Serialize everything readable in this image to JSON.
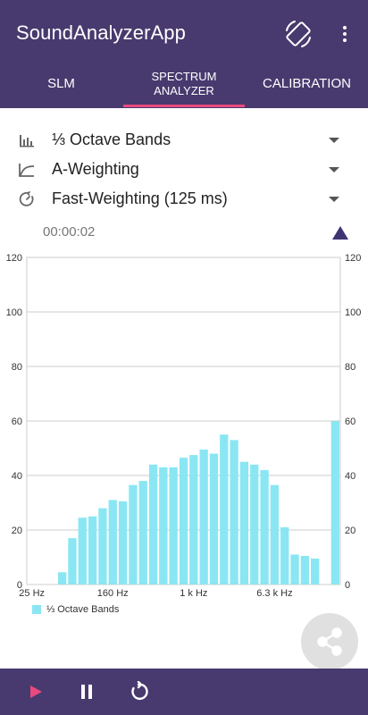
{
  "app": {
    "title": "SoundAnalyzerApp",
    "accent_color": "#e84a7f",
    "primary_color": "#483a6e"
  },
  "tabs": [
    {
      "label": "SLM"
    },
    {
      "label": "SPECTRUM\nANALYZER",
      "selected": true
    },
    {
      "label": "CALIBRATION"
    }
  ],
  "settings": {
    "band_mode": "⅓ Octave Bands",
    "frequency_weighting": "A-Weighting",
    "time_weighting": "Fast-Weighting (125 ms)"
  },
  "timer": "00:00:02",
  "icons": {
    "rotate": "screen-rotation-icon",
    "menu": "more-vert-icon",
    "bars": "bar-chart-icon",
    "curve": "weighting-curve-icon",
    "timer": "timer-icon",
    "share": "share-icon",
    "play": "play-icon",
    "pause": "pause-icon",
    "reset": "replay-icon"
  },
  "chart_data": {
    "type": "bar",
    "ylim": [
      0,
      120
    ],
    "yticks": [
      0,
      20,
      40,
      60,
      80,
      100,
      120
    ],
    "x_tick_labels": [
      "25 Hz",
      "160 Hz",
      "1 k Hz",
      "6.3 k Hz"
    ],
    "x_tick_band_index": [
      0,
      8,
      16,
      24
    ],
    "band_count": 31,
    "values": [
      0,
      0,
      0,
      4.5,
      17,
      24.5,
      25,
      28,
      31,
      30.5,
      36.5,
      38,
      44,
      43,
      43,
      46.5,
      47.5,
      49.5,
      48,
      55,
      53,
      45,
      44,
      42,
      36.5,
      21,
      11,
      10.5,
      9.5,
      0,
      60
    ],
    "bar_color": "#8be6f3",
    "grid": true,
    "legend": {
      "label": "⅓ Octave Bands",
      "placement": "bottom-left"
    }
  }
}
